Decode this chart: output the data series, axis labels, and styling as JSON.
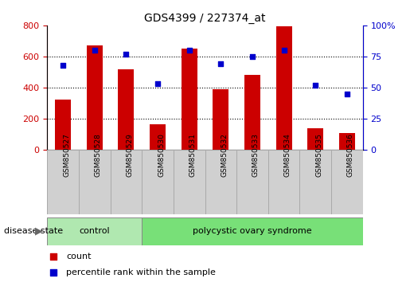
{
  "title": "GDS4399 / 227374_at",
  "samples": [
    "GSM850527",
    "GSM850528",
    "GSM850529",
    "GSM850530",
    "GSM850531",
    "GSM850532",
    "GSM850533",
    "GSM850534",
    "GSM850535",
    "GSM850536"
  ],
  "counts": [
    320,
    670,
    515,
    160,
    648,
    390,
    480,
    795,
    135,
    105
  ],
  "percentiles": [
    68,
    80,
    77,
    53,
    80,
    69,
    75,
    80,
    52,
    45
  ],
  "n_control": 3,
  "bar_color": "#cc0000",
  "dot_color": "#0000cc",
  "ylim_left": [
    0,
    800
  ],
  "ylim_right": [
    0,
    100
  ],
  "yticks_left": [
    0,
    200,
    400,
    600,
    800
  ],
  "yticks_right": [
    0,
    25,
    50,
    75,
    100
  ],
  "bar_width": 0.5,
  "disease_state_label": "disease state",
  "legend_count_label": "count",
  "legend_percentile_label": "percentile rank within the sample",
  "control_label": "control",
  "pcos_label": "polycystic ovary syndrome",
  "control_color": "#b0e8b0",
  "pcos_color": "#78e078",
  "label_box_color": "#d0d0d0",
  "label_box_edge": "#aaaaaa"
}
